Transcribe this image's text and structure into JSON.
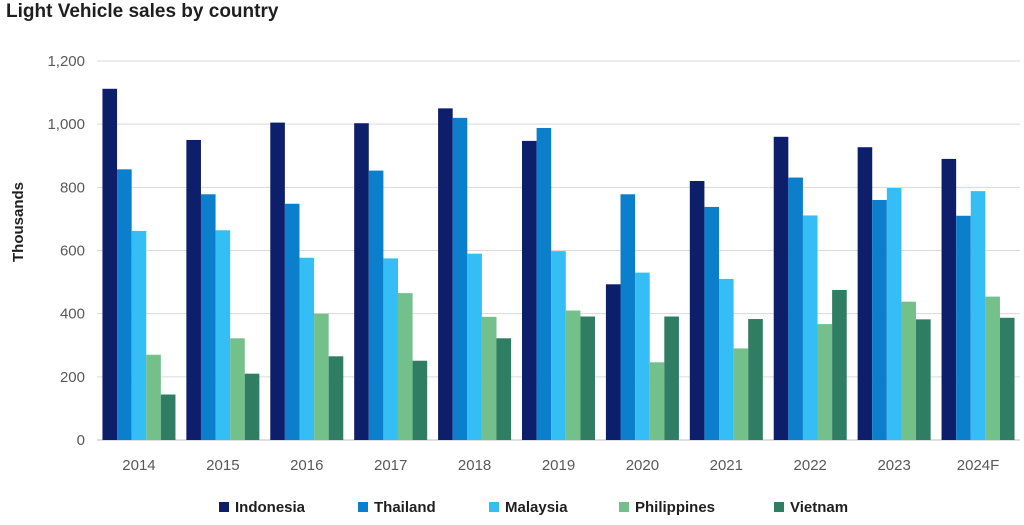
{
  "chart_data": {
    "type": "bar",
    "title": "Light Vehicle sales by country",
    "xlabel": "",
    "ylabel": "Thousands",
    "ylim": [
      0,
      1200
    ],
    "yticks": [
      0,
      200,
      400,
      600,
      800,
      1000,
      1200
    ],
    "ytick_labels": [
      "0",
      "200",
      "400",
      "600",
      "800",
      "1,000",
      "1,200"
    ],
    "grid": true,
    "legend": "bottom",
    "categories": [
      "2014",
      "2015",
      "2016",
      "2017",
      "2018",
      "2019",
      "2020",
      "2021",
      "2022",
      "2023",
      "2024F"
    ],
    "series": [
      {
        "name": "Indonesia",
        "color": "#0d1f6b",
        "values": [
          1112,
          950,
          1005,
          1003,
          1050,
          947,
          493,
          820,
          960,
          927,
          890
        ]
      },
      {
        "name": "Thailand",
        "color": "#0b7fcc",
        "values": [
          857,
          778,
          748,
          853,
          1020,
          988,
          778,
          738,
          831,
          760,
          710
        ]
      },
      {
        "name": "Malaysia",
        "color": "#35bdf5",
        "values": [
          662,
          664,
          577,
          575,
          590,
          598,
          530,
          510,
          711,
          798,
          788
        ]
      },
      {
        "name": "Philippines",
        "color": "#73c08b",
        "values": [
          270,
          322,
          400,
          465,
          390,
          410,
          246,
          290,
          367,
          438,
          454
        ]
      },
      {
        "name": "Vietnam",
        "color": "#2f7d62",
        "values": [
          144,
          210,
          265,
          251,
          322,
          391,
          391,
          383,
          475,
          382,
          387
        ]
      }
    ]
  }
}
